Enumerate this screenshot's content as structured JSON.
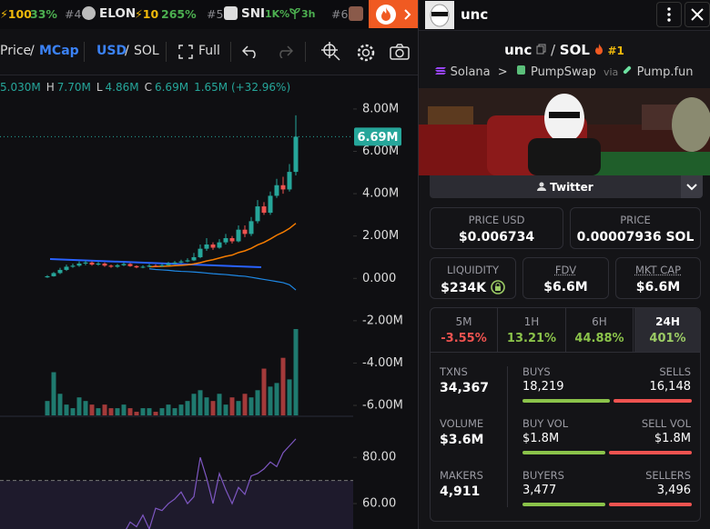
{
  "ticker": [
    {
      "boost": "⚡100",
      "change": "33%"
    },
    {
      "rank": "#4",
      "symbol": "ELON",
      "boost": "⚡10",
      "change": "265%"
    },
    {
      "rank": "#5",
      "symbol": "SNI",
      "change": "1K%",
      "age": "3h"
    },
    {
      "rank": "#6"
    }
  ],
  "toolbar": {
    "price": "Price",
    "sep1": "/",
    "mcap": "MCap",
    "usd": "USD",
    "sep2": "/",
    "sol": "SOL",
    "full": "Full"
  },
  "legend": {
    "open": "5.030M",
    "high_key": "H",
    "high": "7.70M",
    "low_key": "L",
    "low": "4.86M",
    "close_key": "C",
    "close": "6.69M",
    "change": "1.65M (+32.96%)"
  },
  "chart_data": {
    "type": "candlestick",
    "open": [
      0.05,
      0.1,
      0.25,
      0.4,
      0.55,
      0.6,
      0.7,
      0.75,
      0.65,
      0.7,
      0.6,
      0.55,
      0.62,
      0.68,
      0.58,
      0.52,
      0.55,
      0.6,
      0.58,
      0.62,
      0.7,
      0.75,
      0.8,
      0.85,
      1.0,
      1.4,
      1.6,
      1.45,
      1.7,
      1.9,
      1.75,
      2.3,
      2.1,
      2.7,
      3.4,
      3.1,
      3.9,
      4.4,
      4.2,
      5.03
    ],
    "high": [
      0.15,
      0.3,
      0.5,
      0.65,
      0.7,
      0.8,
      0.85,
      0.8,
      0.78,
      0.75,
      0.65,
      0.68,
      0.75,
      0.72,
      0.62,
      0.62,
      0.68,
      0.66,
      0.7,
      0.78,
      0.82,
      0.88,
      0.95,
      1.2,
      1.6,
      1.9,
      1.7,
      1.85,
      2.1,
      2.0,
      2.5,
      2.5,
      2.9,
      3.7,
      3.6,
      4.1,
      4.7,
      4.8,
      5.4,
      7.7
    ],
    "low": [
      0.02,
      0.08,
      0.2,
      0.35,
      0.5,
      0.55,
      0.62,
      0.6,
      0.6,
      0.55,
      0.5,
      0.5,
      0.58,
      0.55,
      0.48,
      0.48,
      0.52,
      0.54,
      0.55,
      0.6,
      0.66,
      0.72,
      0.76,
      0.82,
      0.95,
      1.3,
      1.35,
      1.4,
      1.6,
      1.65,
      1.7,
      1.95,
      2.0,
      2.6,
      3.0,
      3.0,
      3.8,
      4.0,
      4.1,
      4.86
    ],
    "close": [
      0.1,
      0.25,
      0.4,
      0.55,
      0.6,
      0.7,
      0.75,
      0.65,
      0.7,
      0.6,
      0.55,
      0.62,
      0.68,
      0.58,
      0.52,
      0.55,
      0.6,
      0.58,
      0.62,
      0.7,
      0.75,
      0.8,
      0.85,
      1.0,
      1.4,
      1.6,
      1.45,
      1.7,
      1.9,
      1.75,
      2.3,
      2.1,
      2.7,
      3.4,
      3.1,
      3.9,
      4.4,
      4.2,
      5.03,
      6.69
    ],
    "up_color": "#26a69a",
    "down_color": "#ef5350",
    "ylim": [
      -6.6,
      8.64
    ],
    "yticks": [
      {
        "value": 8,
        "label": "8.00M"
      },
      {
        "value": 6,
        "label": "6.00M"
      },
      {
        "value": 4,
        "label": "4.00M"
      },
      {
        "value": 2,
        "label": "2.00M"
      },
      {
        "value": 0,
        "label": "0.000"
      },
      {
        "value": -2,
        "label": "-2.00M"
      },
      {
        "value": -4,
        "label": "-4.00M"
      },
      {
        "value": -6,
        "label": "-6.00M"
      }
    ],
    "last_price": {
      "value": 6.69,
      "label": "6.69M"
    },
    "volume": [
      0.4,
      1.2,
      0.6,
      0.3,
      0.2,
      0.5,
      0.4,
      0.3,
      0.2,
      0.3,
      0.2,
      0.2,
      0.3,
      0.2,
      0.1,
      0.2,
      0.2,
      0.1,
      0.2,
      0.3,
      0.2,
      0.3,
      0.4,
      0.6,
      0.7,
      0.5,
      0.4,
      0.6,
      0.3,
      0.5,
      0.4,
      0.6,
      0.5,
      0.7,
      1.3,
      0.8,
      0.9,
      1.6,
      1.0,
      2.4
    ],
    "ma_orange": {
      "color": "#f57c00",
      "values": [
        null,
        null,
        null,
        null,
        null,
        null,
        null,
        null,
        null,
        null,
        null,
        null,
        null,
        null,
        null,
        null,
        0.55,
        0.56,
        0.57,
        0.58,
        0.6,
        0.62,
        0.64,
        0.68,
        0.74,
        0.82,
        0.88,
        0.96,
        1.04,
        1.1,
        1.22,
        1.3,
        1.42,
        1.58,
        1.7,
        1.86,
        2.04,
        2.18,
        2.36,
        2.6
      ]
    },
    "ma_blue": {
      "color": "#1e88e5",
      "values": [
        null,
        null,
        null,
        null,
        null,
        null,
        null,
        null,
        null,
        null,
        null,
        null,
        null,
        null,
        null,
        null,
        0.45,
        0.42,
        0.4,
        0.38,
        0.35,
        0.33,
        0.32,
        0.3,
        0.28,
        0.25,
        0.22,
        0.2,
        0.18,
        0.15,
        0.12,
        0.1,
        0.05,
        0.0,
        -0.05,
        -0.1,
        -0.15,
        -0.2,
        -0.3,
        -0.55
      ]
    },
    "rsi": {
      "color": "#7e57c2",
      "ylim": [
        49,
        97
      ],
      "band": 70,
      "yticks": [
        {
          "value": 80,
          "label": "80.00"
        },
        {
          "value": 60,
          "label": "60.00"
        }
      ],
      "values": [
        null,
        null,
        null,
        null,
        null,
        null,
        null,
        null,
        null,
        null,
        null,
        null,
        47,
        52,
        50,
        55,
        49,
        58,
        57,
        60,
        62,
        65,
        60,
        63,
        80,
        71,
        60,
        73,
        66,
        60,
        67,
        64,
        72,
        73,
        75,
        78,
        76,
        82,
        85,
        88
      ]
    }
  },
  "pair": {
    "header_name": "unc",
    "base": "unc",
    "sep": "/",
    "quote": "SOL",
    "rank": "#1",
    "chain": "Solana",
    "arrow": ">",
    "dex": "PumpSwap",
    "via": "via",
    "launchpad": "Pump.fun"
  },
  "twitter": "Twitter",
  "cards": [
    {
      "label": "PRICE USD",
      "value": "$0.006734"
    },
    {
      "label": "PRICE",
      "value": "0.00007936 SOL"
    },
    {
      "label": "LIQUIDITY",
      "value": "$234K"
    },
    {
      "label": "FDV",
      "value": "$6.6M"
    },
    {
      "label": "MKT CAP",
      "value": "$6.6M"
    }
  ],
  "tabs": [
    {
      "label": "5M",
      "change": "-3.55%"
    },
    {
      "label": "1H",
      "change": "13.21%"
    },
    {
      "label": "6H",
      "change": "44.88%"
    },
    {
      "label": "24H",
      "change": "401%"
    }
  ],
  "stats": [
    {
      "label": "TXNS",
      "value": "34,367",
      "a_label": "BUYS",
      "a": {
        "value": 18219,
        "label": "18,219"
      },
      "b_label": "SELLS",
      "b": {
        "value": 16148,
        "label": "16,148"
      }
    },
    {
      "label": "VOLUME",
      "value": "$3.6M",
      "a_label": "BUY VOL",
      "a": {
        "value": 1800000,
        "label": "$1.8M"
      },
      "b_label": "SELL VOL",
      "b": {
        "value": 1800000,
        "label": "$1.8M"
      }
    },
    {
      "label": "MAKERS",
      "value": "4,911",
      "a_label": "BUYERS",
      "a": {
        "value": 3477,
        "label": "3,477"
      },
      "b_label": "SELLERS",
      "b": {
        "value": 3496,
        "label": "3,496"
      }
    }
  ]
}
